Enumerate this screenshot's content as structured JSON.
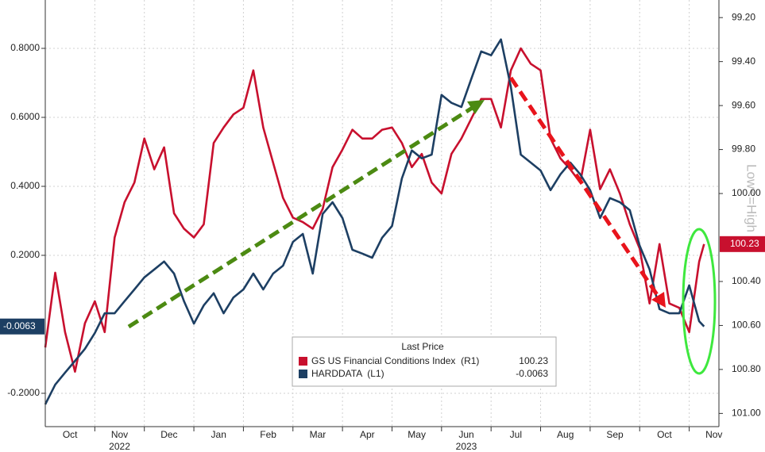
{
  "chart_data": {
    "type": "line",
    "legend_title": "Last Price",
    "y2_axis_label": "Low<=High",
    "x": [
      0,
      0.2,
      0.4,
      0.6,
      0.8,
      1,
      1.2,
      1.4,
      1.6,
      1.8,
      2,
      2.2,
      2.4,
      2.6,
      2.8,
      3,
      3.2,
      3.4,
      3.6,
      3.8,
      4,
      4.2,
      4.4,
      4.6,
      4.8,
      5,
      5.2,
      5.4,
      5.6,
      5.8,
      6,
      6.2,
      6.4,
      6.6,
      6.8,
      7,
      7.2,
      7.4,
      7.6,
      7.8,
      8,
      8.2,
      8.4,
      8.6,
      8.8,
      9,
      9.2,
      9.4,
      9.6,
      9.8,
      10,
      10.2,
      10.4,
      10.6,
      10.8,
      11,
      11.2,
      11.4,
      11.6,
      11.8,
      12,
      12.2,
      12.4,
      12.6,
      12.8,
      13,
      13.2,
      13.3
    ],
    "series": [
      {
        "name": "GS US Financial Conditions Index  (R1)",
        "color": "#c8102e",
        "axis": "y2",
        "values": [
          100.7,
          100.36,
          100.63,
          100.81,
          100.59,
          100.49,
          100.63,
          100.2,
          100.04,
          99.95,
          99.75,
          99.89,
          99.79,
          100.09,
          100.16,
          100.2,
          100.14,
          99.77,
          99.7,
          99.64,
          99.61,
          99.44,
          99.7,
          99.86,
          100.02,
          100.11,
          100.13,
          100.16,
          100.07,
          99.88,
          99.8,
          99.71,
          99.75,
          99.75,
          99.71,
          99.7,
          99.77,
          99.88,
          99.82,
          99.95,
          100.0,
          99.82,
          99.75,
          99.66,
          99.57,
          99.57,
          99.7,
          99.44,
          99.34,
          99.41,
          99.44,
          99.75,
          99.84,
          99.89,
          99.95,
          99.71,
          99.98,
          99.89,
          100.0,
          100.14,
          100.25,
          100.5,
          100.23,
          100.5,
          100.52,
          100.63,
          100.31,
          100.23
        ]
      },
      {
        "name": "HARDDATA  (L1)",
        "color": "#1d3f63",
        "values": [
          -0.232,
          -0.175,
          -0.14,
          -0.106,
          -0.071,
          -0.025,
          0.032,
          0.032,
          0.067,
          0.101,
          0.136,
          0.159,
          0.182,
          0.147,
          0.067,
          0.002,
          0.055,
          0.09,
          0.032,
          0.078,
          0.101,
          0.147,
          0.101,
          0.147,
          0.17,
          0.239,
          0.262,
          0.147,
          0.32,
          0.354,
          0.308,
          0.216,
          0.205,
          0.193,
          0.251,
          0.285,
          0.423,
          0.504,
          0.481,
          0.492,
          0.665,
          0.642,
          0.63,
          0.711,
          0.791,
          0.78,
          0.826,
          0.688,
          0.492,
          0.469,
          0.446,
          0.389,
          0.435,
          0.469,
          0.435,
          0.389,
          0.308,
          0.366,
          0.354,
          0.331,
          0.228,
          0.159,
          0.044,
          0.032,
          0.032,
          0.113,
          0.009,
          -0.0063
        ]
      }
    ],
    "xlim": [
      0,
      13.6
    ],
    "xticks": [
      {
        "value": 0.5,
        "label": "Oct"
      },
      {
        "value": 1.5,
        "label": "Nov"
      },
      {
        "value": 2.5,
        "label": "Dec"
      },
      {
        "value": 3.5,
        "label": "Jan"
      },
      {
        "value": 4.5,
        "label": "Feb"
      },
      {
        "value": 5.5,
        "label": "Mar"
      },
      {
        "value": 6.5,
        "label": "Apr"
      },
      {
        "value": 7.5,
        "label": "May"
      },
      {
        "value": 8.5,
        "label": "Jun"
      },
      {
        "value": 9.5,
        "label": "Jul"
      },
      {
        "value": 10.5,
        "label": "Aug"
      },
      {
        "value": 11.5,
        "label": "Sep"
      },
      {
        "value": 12.5,
        "label": "Oct"
      },
      {
        "value": 13.5,
        "label": "Nov"
      }
    ],
    "x_year_labels": [
      {
        "value": 1.5,
        "label": "2022"
      },
      {
        "value": 8.5,
        "label": "2023"
      }
    ],
    "ylim": [
      -0.2966,
      0.9402
    ],
    "yticks": [
      {
        "value": -0.2,
        "label": "-0.2000"
      },
      {
        "value": 0.2,
        "label": "0.2000"
      },
      {
        "value": 0.4,
        "label": "0.4000"
      },
      {
        "value": 0.6,
        "label": "0.6000"
      },
      {
        "value": 0.8,
        "label": "0.8000"
      }
    ],
    "y2lim": [
      101.06,
      99.12
    ],
    "y2ticks": [
      {
        "value": 99.2,
        "label": "99.20"
      },
      {
        "value": 99.4,
        "label": "99.40"
      },
      {
        "value": 99.6,
        "label": "99.60"
      },
      {
        "value": 99.8,
        "label": "99.80"
      },
      {
        "value": 100,
        "label": "100.00"
      },
      {
        "value": 100.4,
        "label": "100.40"
      },
      {
        "value": 100.6,
        "label": "100.60"
      },
      {
        "value": 100.8,
        "label": "100.80"
      },
      {
        "value": 101,
        "label": "101.00"
      }
    ],
    "grid": true
  }
}
